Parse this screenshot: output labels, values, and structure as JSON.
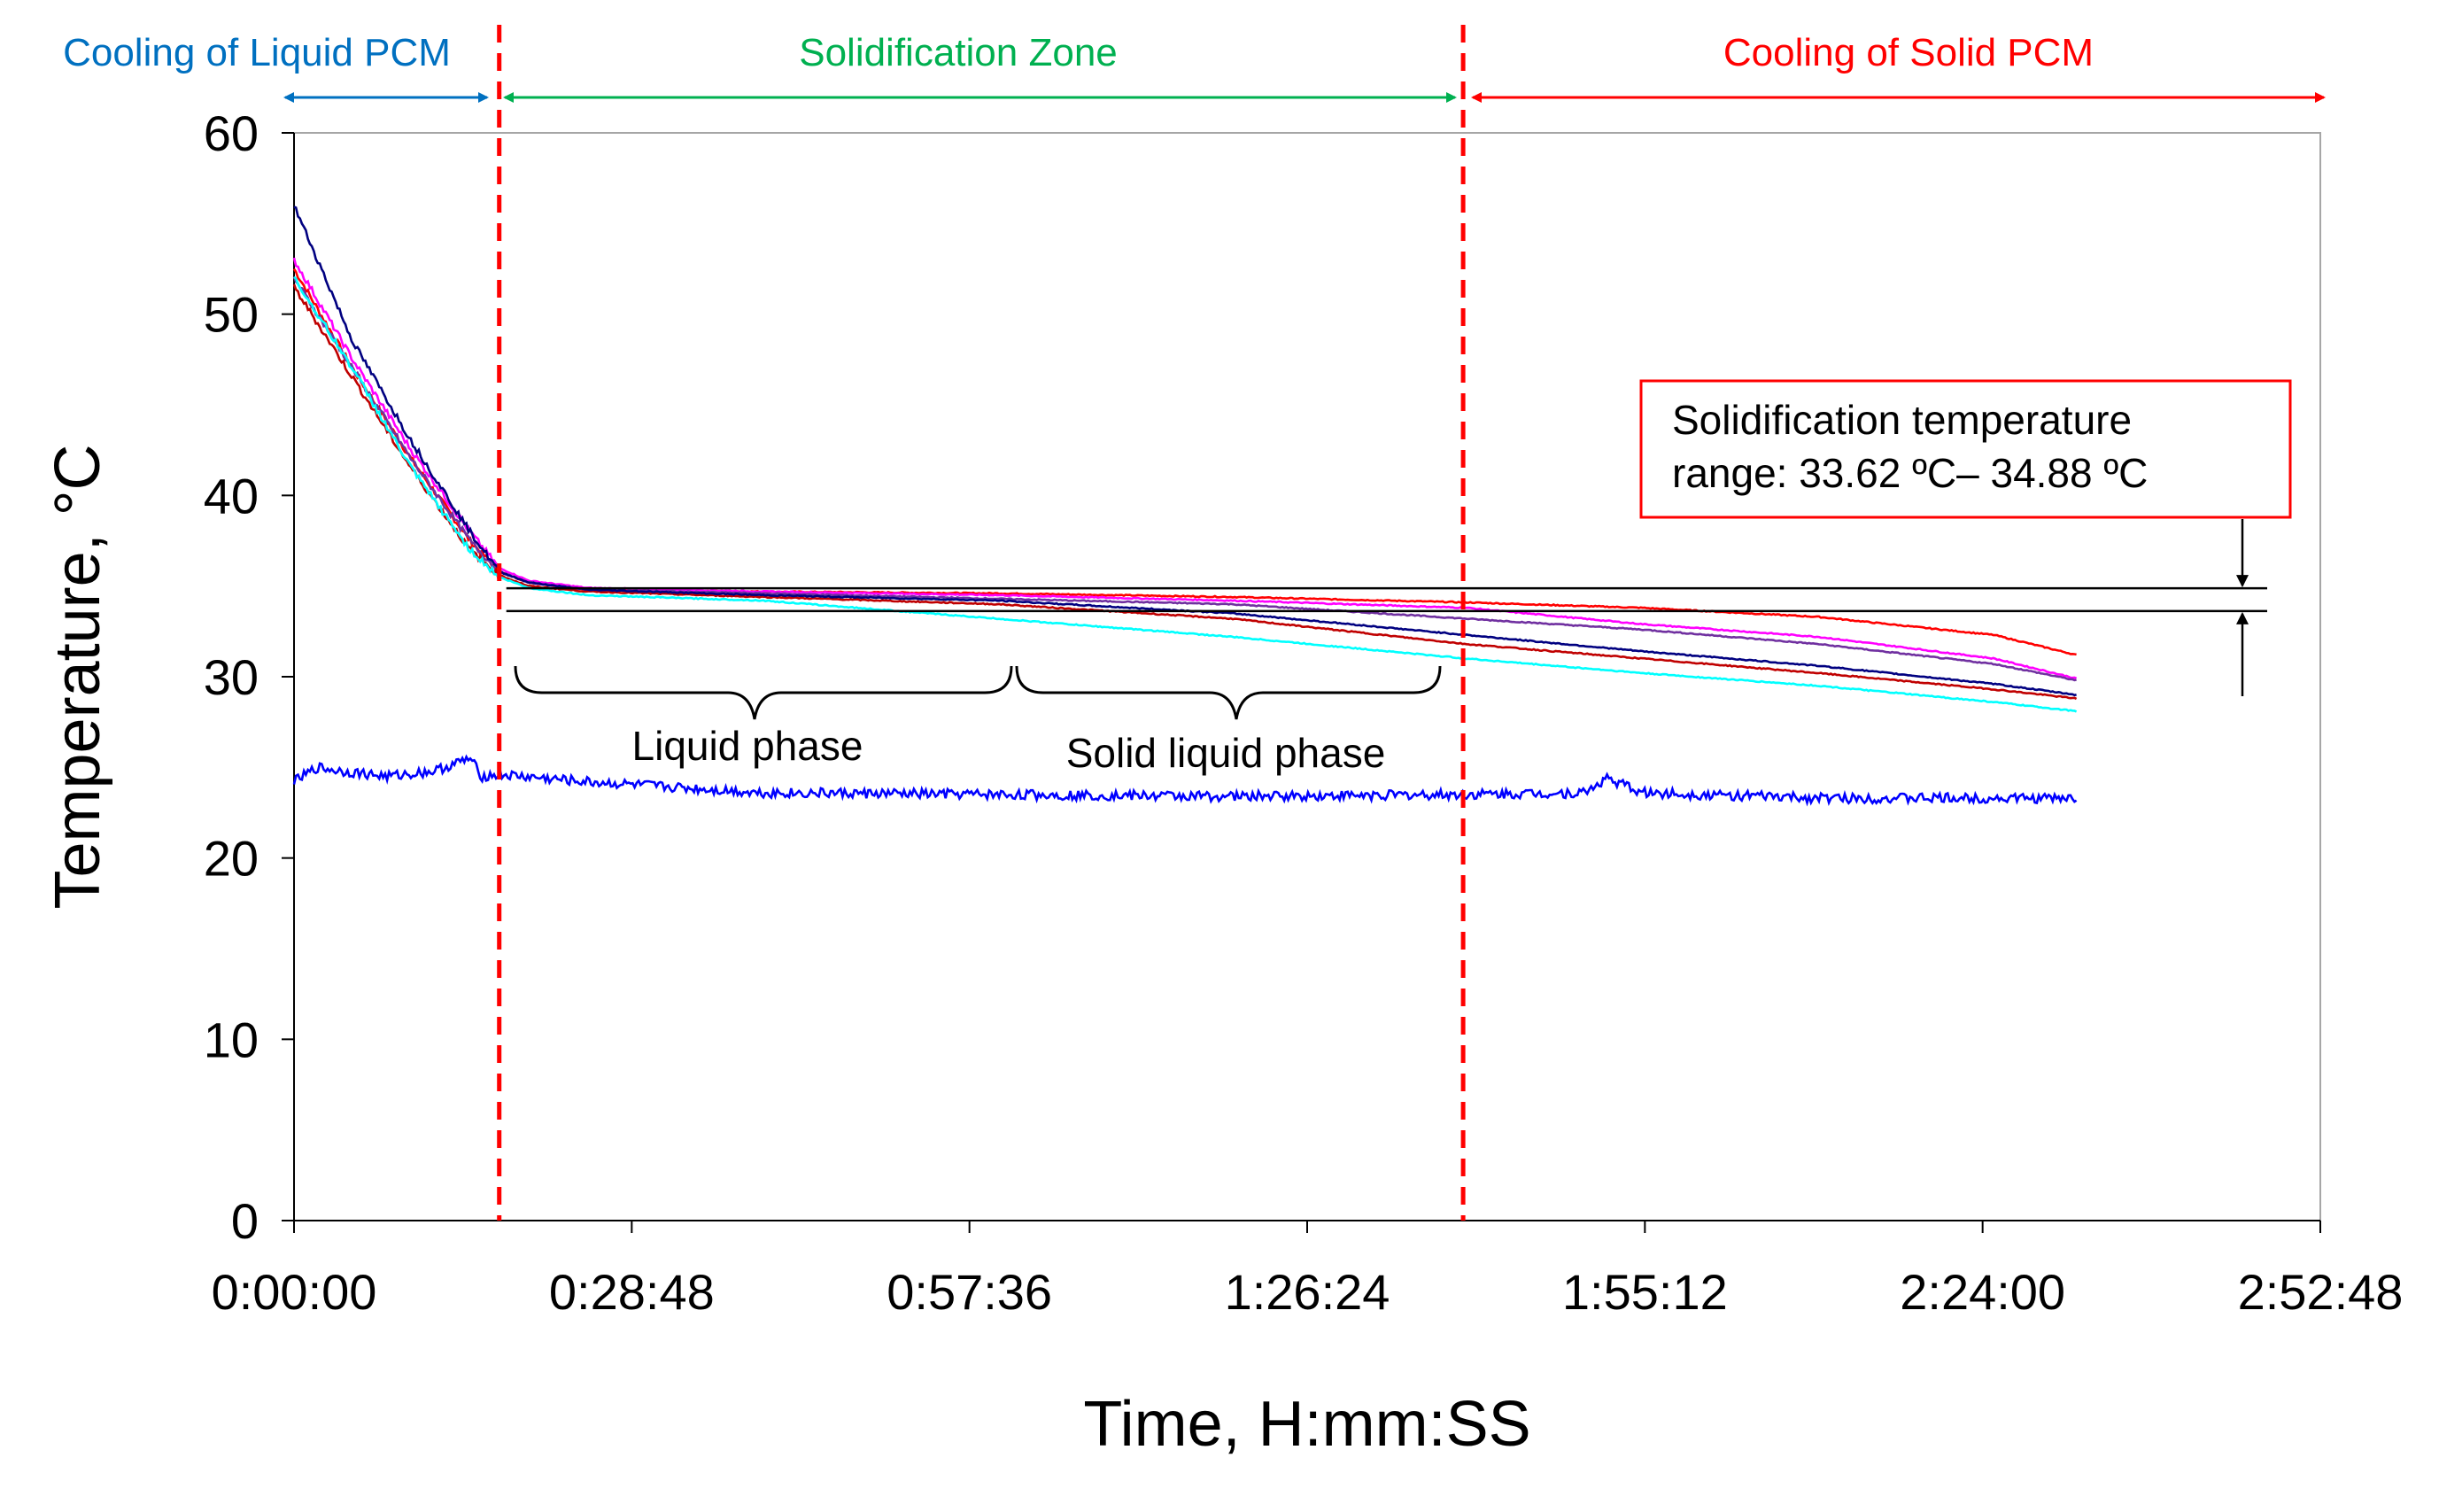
{
  "chart_data": {
    "type": "line",
    "title": "",
    "xlabel": "Time, H:mm:SS",
    "ylabel": "Temperature, °C",
    "xlim_min": [
      0,
      172.8
    ],
    "ylim": [
      0,
      60
    ],
    "x_ticks": [
      "0:00:00",
      "0:28:48",
      "0:57:36",
      "1:26:24",
      "1:55:12",
      "2:24:00",
      "2:52:48"
    ],
    "x_tick_values_min": [
      0,
      28.8,
      57.6,
      86.4,
      115.2,
      144,
      172.8
    ],
    "y_ticks": [
      "0",
      "10",
      "20",
      "30",
      "40",
      "50",
      "60"
    ],
    "y_tick_values": [
      0,
      10,
      20,
      30,
      40,
      50,
      60
    ],
    "grid": false,
    "zones": [
      {
        "label": "Cooling of Liquid PCM",
        "from_min": 0,
        "to_min": 17.5,
        "color": "#0070c0"
      },
      {
        "label": "Solidification Zone",
        "from_min": 17.5,
        "to_min": 99.7,
        "color": "#00b050"
      },
      {
        "label": "Cooling of Solid PCM",
        "from_min": 99.7,
        "to_min": 173,
        "color": "#ff0000"
      }
    ],
    "zone_boundaries_min": [
      17.5,
      99.7
    ],
    "phase_labels": [
      {
        "label": "Liquid phase",
        "from_min": 19,
        "to_min": 61
      },
      {
        "label": "Solid liquid phase",
        "from_min": 62,
        "to_min": 98
      }
    ],
    "annotation": {
      "line1": "Solidification temperature",
      "line2": "range: 33.62 ºC– 34.88 ºC",
      "range": [
        33.62,
        34.88
      ]
    },
    "series": [
      {
        "color": "#ff0000",
        "x": [
          0,
          5,
          10,
          15,
          17.5,
          20,
          25,
          40,
          60,
          80,
          100,
          115,
          130,
          145,
          152
        ],
        "y": [
          52.5,
          47,
          42,
          37.5,
          35.8,
          35.2,
          34.8,
          34.7,
          34.6,
          34.4,
          34.1,
          33.8,
          33.3,
          32.3,
          31.2
        ]
      },
      {
        "color": "#ff00ff",
        "x": [
          0,
          5,
          10,
          15,
          17.5,
          20,
          25,
          40,
          60,
          80,
          100,
          115,
          130,
          145,
          152
        ],
        "y": [
          53,
          47.5,
          42.5,
          38,
          36,
          35.3,
          34.9,
          34.7,
          34.5,
          34.2,
          33.8,
          32.9,
          32.2,
          31,
          29.9
        ]
      },
      {
        "color": "#7030a0",
        "x": [
          0,
          5,
          10,
          15,
          17.5,
          20,
          25,
          40,
          60,
          80,
          100,
          115,
          130,
          145,
          152
        ],
        "y": [
          52,
          47,
          42,
          37.5,
          35.8,
          35.2,
          34.8,
          34.6,
          34.3,
          34,
          33.2,
          32.6,
          31.8,
          30.7,
          29.8
        ]
      },
      {
        "color": "#c00000",
        "x": [
          0,
          5,
          10,
          15,
          17.5,
          20,
          25,
          40,
          60,
          80,
          100,
          115,
          130,
          145,
          152
        ],
        "y": [
          51.5,
          46.5,
          41.5,
          37,
          35.6,
          35,
          34.7,
          34.4,
          34,
          33.2,
          31.8,
          31,
          30.2,
          29.3,
          28.8
        ]
      },
      {
        "color": "#000080",
        "x": [
          0,
          5,
          10,
          15,
          17.5,
          20,
          25,
          40,
          60,
          80,
          100,
          115,
          130,
          145,
          152
        ],
        "y": [
          56,
          48.5,
          43,
          38,
          35.8,
          35.2,
          34.8,
          34.5,
          34.2,
          33.5,
          32.3,
          31.4,
          30.6,
          29.6,
          29
        ]
      },
      {
        "color": "#00ffff",
        "x": [
          0,
          5,
          10,
          15,
          17.5,
          20,
          25,
          40,
          60,
          80,
          100,
          115,
          130,
          145,
          152
        ],
        "y": [
          52,
          47,
          41.5,
          37,
          35.5,
          34.9,
          34.5,
          34.2,
          33.2,
          32.2,
          31,
          30.2,
          29.5,
          28.6,
          28.1
        ]
      },
      {
        "color": "#0000ff",
        "x": [
          0,
          2,
          4,
          8,
          12,
          15,
          16,
          17.5,
          25,
          40,
          60,
          80,
          100,
          110,
          112,
          115,
          130,
          145,
          152
        ],
        "y": [
          24.2,
          25,
          24.8,
          24.5,
          24.8,
          25.5,
          24.5,
          24.6,
          24.2,
          23.6,
          23.5,
          23.4,
          23.5,
          23.6,
          24.4,
          23.6,
          23.3,
          23.3,
          23.3
        ]
      }
    ]
  }
}
